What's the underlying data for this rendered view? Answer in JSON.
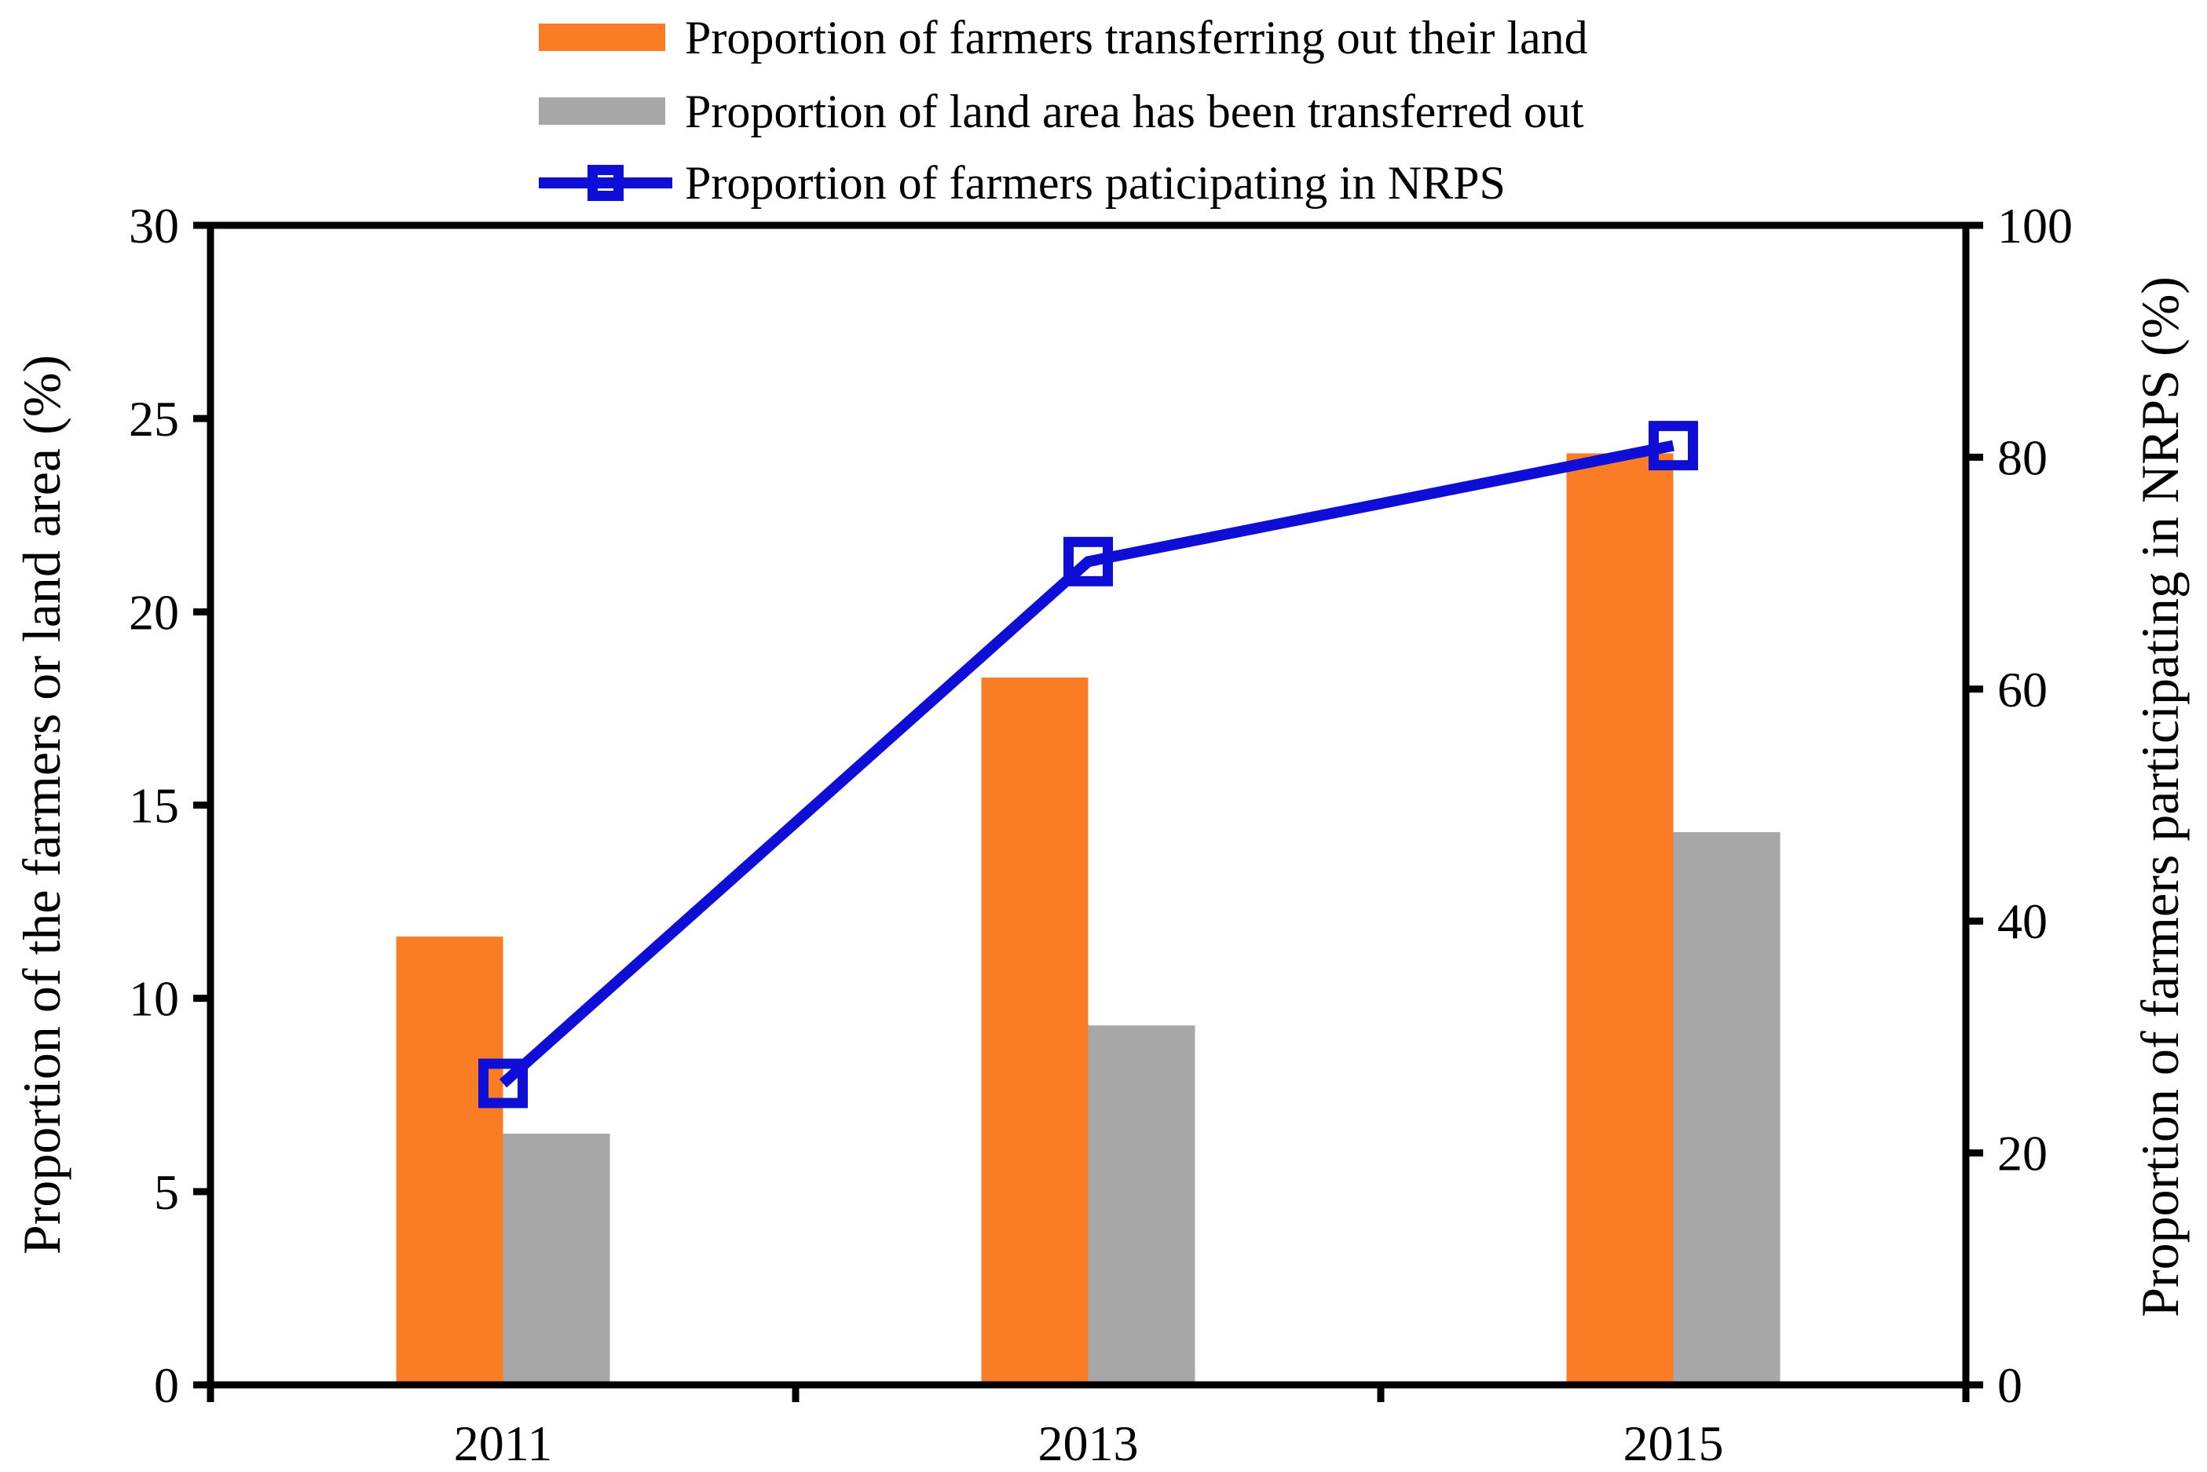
{
  "figure": {
    "background": "#ffffff",
    "frame_color": "#000000"
  },
  "legend": {
    "items": [
      {
        "label": "Proportion of farmers transferring out their land",
        "marker": "bar",
        "color": "#FA7D26"
      },
      {
        "label": "Proportion of land area has been transferred out",
        "marker": "bar",
        "color": "#A7A7A7"
      },
      {
        "label": "Proportion of farmers paticipating in NRPS",
        "marker": "line-open-square",
        "color": "#0E0ED6"
      }
    ]
  },
  "chart_data": {
    "type": "bar+line",
    "categories": [
      "2011",
      "2013",
      "2015"
    ],
    "series": [
      {
        "name": "Proportion of farmers transferring out their land",
        "type": "bar",
        "axis": "left",
        "color": "#FA7D26",
        "values": [
          11.6,
          18.3,
          24.1
        ]
      },
      {
        "name": "Proportion of land area has been transferred out",
        "type": "bar",
        "axis": "left",
        "color": "#A7A7A7",
        "values": [
          6.5,
          9.3,
          14.3
        ]
      },
      {
        "name": "Proportion of farmers paticipating in NRPS",
        "type": "line",
        "axis": "right",
        "color": "#0E0ED6",
        "marker": "open-square",
        "values": [
          26,
          71,
          81
        ]
      }
    ],
    "left_axis": {
      "label": "Proportion of the farmers or land area (%)",
      "min": 0,
      "max": 30,
      "ticks": [
        0,
        5,
        10,
        15,
        20,
        25,
        30
      ]
    },
    "right_axis": {
      "label": "Proportion of farmers participating in NRPS (%)",
      "min": 0,
      "max": 100,
      "ticks": [
        0,
        20,
        40,
        60,
        80,
        100
      ]
    },
    "x_axis": {
      "labels": [
        "2011",
        "2013",
        "2015"
      ]
    },
    "grid": false,
    "legend_position": "top-center",
    "frame": "full-box"
  }
}
